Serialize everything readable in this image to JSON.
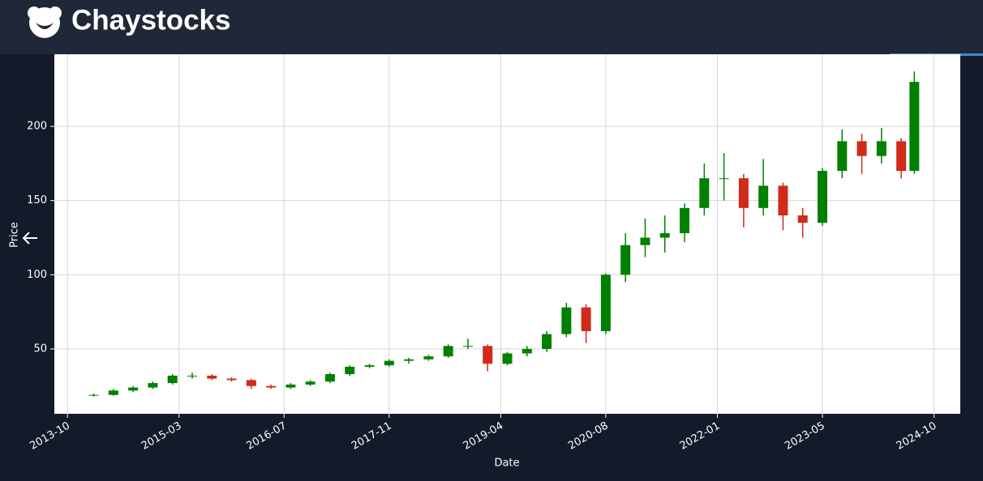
{
  "header": {
    "title": "Chaystocks"
  },
  "chart_data": {
    "type": "candlestick",
    "x_label": "Date",
    "y_label": "Price",
    "x": [
      "2014-02",
      "2014-05",
      "2014-08",
      "2014-11",
      "2015-02",
      "2015-05",
      "2015-08",
      "2015-11",
      "2016-02",
      "2016-05",
      "2016-08",
      "2016-11",
      "2017-02",
      "2017-05",
      "2017-08",
      "2017-11",
      "2018-02",
      "2018-05",
      "2018-08",
      "2018-11",
      "2019-02",
      "2019-05",
      "2019-08",
      "2019-11",
      "2020-02",
      "2020-05",
      "2020-08",
      "2020-11",
      "2021-02",
      "2021-05",
      "2021-08",
      "2021-11",
      "2022-02",
      "2022-05",
      "2022-08",
      "2022-11",
      "2023-02",
      "2023-05",
      "2023-08",
      "2023-11",
      "2024-02",
      "2024-05",
      "2024-07"
    ],
    "open": [
      18.5,
      19,
      22,
      24,
      27,
      32,
      32,
      30,
      29,
      25,
      24,
      26,
      28,
      33,
      38,
      39,
      42,
      43,
      45,
      52,
      52,
      40,
      47,
      50,
      60,
      78,
      62,
      100,
      120,
      125,
      128,
      145,
      165,
      165,
      145,
      160,
      140,
      135,
      170,
      190,
      180,
      190,
      170
    ],
    "high": [
      20,
      23,
      25,
      28,
      33,
      34,
      33,
      31,
      30,
      26,
      27,
      29,
      34,
      39,
      40,
      43,
      44,
      46,
      53,
      57,
      53,
      48,
      52,
      62,
      81,
      80,
      101,
      128,
      138,
      140,
      148,
      175,
      182,
      168,
      178,
      162,
      145,
      172,
      198,
      195,
      199,
      192,
      237
    ],
    "low": [
      18,
      18.5,
      21,
      23,
      26,
      30,
      29,
      28,
      23,
      23,
      23,
      25,
      27,
      32,
      37,
      38,
      40,
      42,
      44,
      50,
      35,
      39,
      45,
      48,
      58,
      54,
      60,
      95,
      112,
      115,
      122,
      140,
      150,
      132,
      140,
      130,
      125,
      133,
      165,
      168,
      175,
      165,
      168
    ],
    "close": [
      19,
      22,
      24,
      27,
      32,
      32,
      30,
      29,
      25,
      24,
      26,
      28,
      33,
      38,
      39,
      42,
      43,
      45,
      52,
      52,
      40,
      47,
      50,
      60,
      78,
      62,
      100,
      120,
      125,
      128,
      145,
      165,
      165,
      145,
      160,
      140,
      135,
      170,
      190,
      180,
      190,
      170,
      230
    ],
    "up_color": "#008000",
    "down_color": "#d02a1a",
    "xlim": [
      "2013-08",
      "2025-02"
    ],
    "xticks": [
      "2013-10",
      "2015-03",
      "2016-07",
      "2017-11",
      "2019-04",
      "2020-08",
      "2022-01",
      "2023-05",
      "2024-10"
    ],
    "ylim": [
      6.3,
      248.6
    ],
    "yticks": [
      50,
      100,
      150,
      200
    ],
    "grid": true
  }
}
